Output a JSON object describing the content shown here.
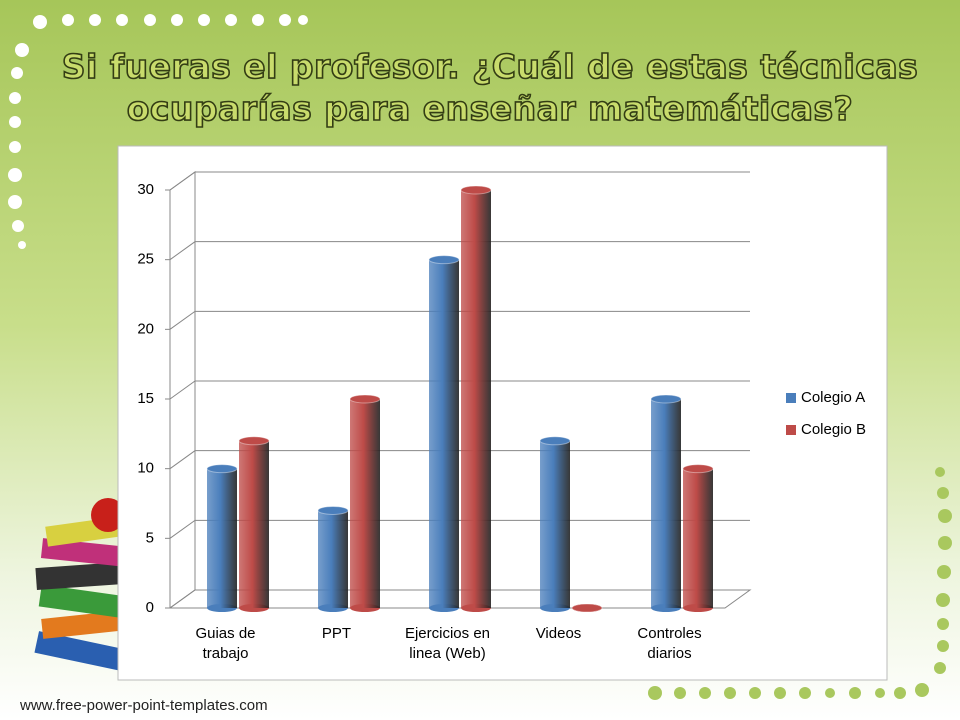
{
  "chart_data": {
    "type": "bar",
    "title": "Si fueras el profesor. ¿Cuál de estas técnicas ocuparías para enseñar matemáticas?",
    "categories": [
      "Guias de trabajo",
      "PPT",
      "Ejercicios en linea (Web)",
      "Videos",
      "Controles diarios"
    ],
    "series": [
      {
        "name": "Colegio A",
        "color": "#4a7ebb",
        "values": [
          10,
          7,
          25,
          12,
          15
        ]
      },
      {
        "name": "Colegio B",
        "color": "#be4b48",
        "values": [
          12,
          15,
          30,
          0,
          10
        ]
      }
    ],
    "ylim": [
      0,
      30
    ],
    "yticks": [
      0,
      5,
      10,
      15,
      20,
      25,
      30
    ],
    "grid": true,
    "legend": "right"
  },
  "footer": "www.free-power-point-templates.com"
}
